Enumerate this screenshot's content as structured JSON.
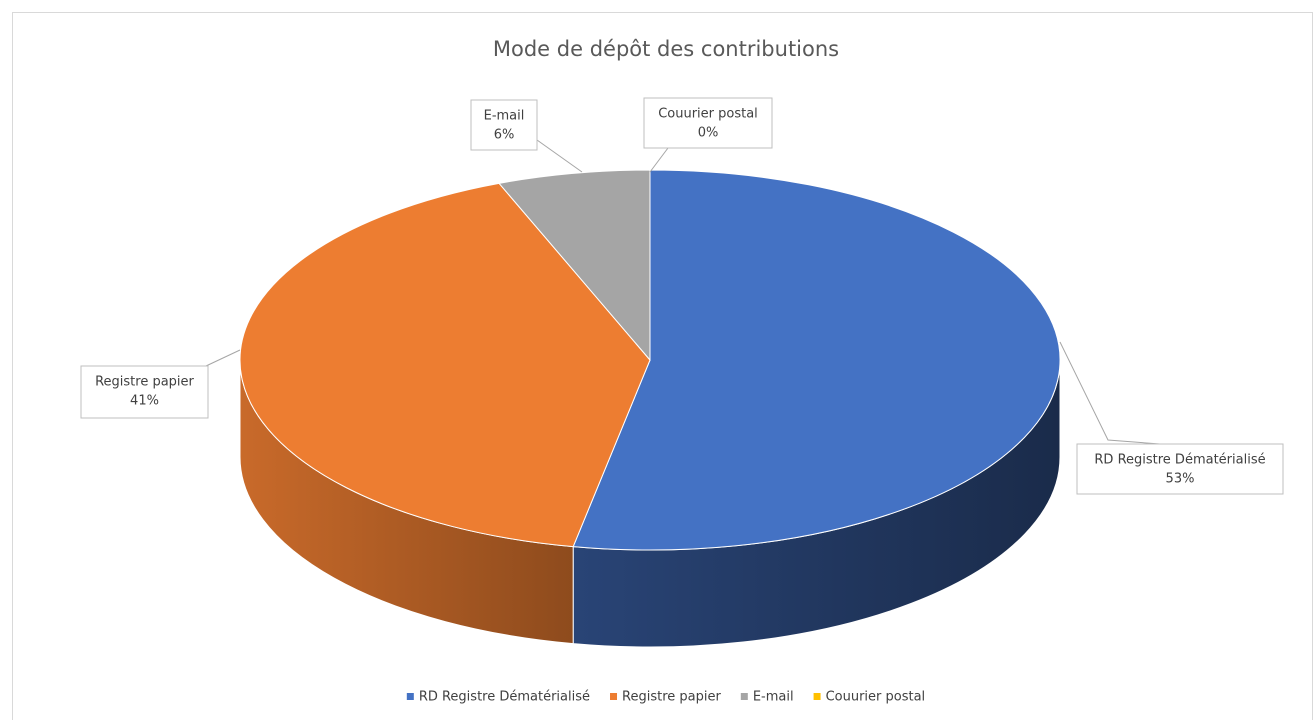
{
  "chart_data": {
    "type": "pie3d",
    "title": "Mode de dépôt des contributions",
    "categories": [
      "RD Registre Dématérialisé",
      "Registre papier",
      "E-mail",
      "Couurier postal"
    ],
    "values": [
      53,
      41,
      6,
      0
    ],
    "value_labels": [
      "53%",
      "41%",
      "6%",
      "0%"
    ],
    "colors": [
      "#4472c4",
      "#ed7d31",
      "#a5a5a5",
      "#ffc000"
    ],
    "legend": "bottom"
  }
}
